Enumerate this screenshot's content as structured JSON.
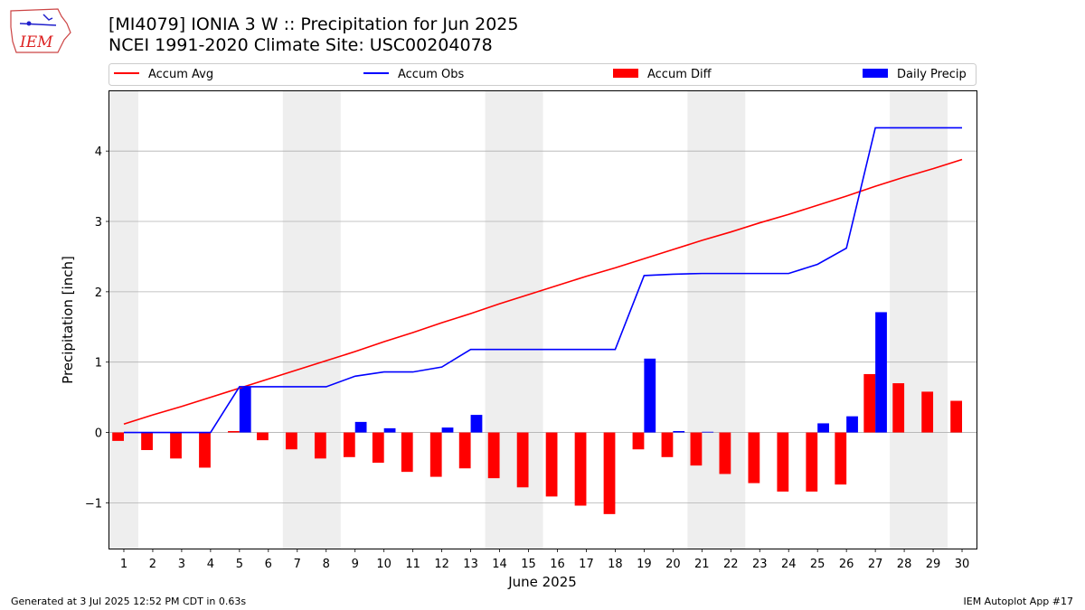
{
  "header": {
    "title_line1": "[MI4079] IONIA 3 W :: Precipitation for Jun 2025",
    "title_line2": "NCEI 1991-2020 Climate Site: USC00204078",
    "logo_text": "IEM"
  },
  "footer": {
    "left": "Generated at 3 Jul 2025 12:52 PM CDT in 0.63s",
    "right": "IEM Autoplot App #17"
  },
  "colors": {
    "accum_avg": "#ff0000",
    "accum_obs": "#0000ff",
    "accum_diff": "#ff0000",
    "daily_precip": "#0000ff",
    "weekend_shade": "#eeeeee",
    "grid": "#b0b0b0"
  },
  "chart_data": {
    "type": "bar",
    "xlabel": "June 2025",
    "ylabel": "Precipitation [inch]",
    "ylim": [
      -1.65,
      4.85
    ],
    "yticks": [
      -1,
      0,
      1,
      2,
      3,
      4
    ],
    "ytick_labels": [
      "−1",
      "0",
      "1",
      "2",
      "3",
      "4"
    ],
    "x": [
      1,
      2,
      3,
      4,
      5,
      6,
      7,
      8,
      9,
      10,
      11,
      12,
      13,
      14,
      15,
      16,
      17,
      18,
      19,
      20,
      21,
      22,
      23,
      24,
      25,
      26,
      27,
      28,
      29,
      30
    ],
    "x_tick_labels": [
      "1",
      "2",
      "3",
      "4",
      "5",
      "6",
      "7",
      "8",
      "9",
      "10",
      "11",
      "12",
      "13",
      "14",
      "15",
      "16",
      "17",
      "18",
      "19",
      "20",
      "21",
      "22",
      "23",
      "24",
      "25",
      "26",
      "27",
      "28",
      "29",
      "30"
    ],
    "grid": "horizontal",
    "legend_position": "top",
    "weekend_shading": [
      [
        1,
        1
      ],
      [
        7,
        8
      ],
      [
        14,
        15
      ],
      [
        21,
        22
      ],
      [
        28,
        29
      ]
    ],
    "series": [
      {
        "name": "Accum Avg",
        "kind": "line",
        "values": [
          0.12,
          0.25,
          0.37,
          0.5,
          0.63,
          0.76,
          0.89,
          1.02,
          1.15,
          1.29,
          1.42,
          1.56,
          1.69,
          1.83,
          1.96,
          2.09,
          2.22,
          2.34,
          2.47,
          2.6,
          2.73,
          2.85,
          2.98,
          3.1,
          3.23,
          3.36,
          3.5,
          3.63,
          3.75,
          3.88
        ]
      },
      {
        "name": "Accum Obs",
        "kind": "line",
        "values": [
          0,
          0,
          0,
          0,
          0.65,
          0.65,
          0.65,
          0.65,
          0.8,
          0.86,
          0.86,
          0.93,
          1.18,
          1.18,
          1.18,
          1.18,
          1.18,
          1.18,
          2.23,
          2.25,
          2.26,
          2.26,
          2.26,
          2.26,
          2.39,
          2.62,
          4.33,
          4.33,
          4.33,
          4.33
        ]
      },
      {
        "name": "Accum Diff",
        "kind": "bar",
        "values": [
          -0.12,
          -0.25,
          -0.37,
          -0.5,
          0.02,
          -0.11,
          -0.24,
          -0.37,
          -0.35,
          -0.43,
          -0.56,
          -0.63,
          -0.51,
          -0.65,
          -0.78,
          -0.91,
          -1.04,
          -1.16,
          -0.24,
          -0.35,
          -0.47,
          -0.59,
          -0.72,
          -0.84,
          -0.84,
          -0.74,
          0.83,
          0.7,
          0.58,
          0.45
        ]
      },
      {
        "name": "Daily Precip",
        "kind": "bar",
        "values": [
          0,
          0,
          0,
          0,
          0.65,
          0,
          0,
          0,
          0.15,
          0.06,
          0,
          0.07,
          0.25,
          0,
          0,
          0,
          0,
          0,
          1.05,
          0.02,
          0.01,
          0,
          0,
          0,
          0.13,
          0.23,
          1.71,
          0,
          0,
          0
        ]
      }
    ]
  }
}
